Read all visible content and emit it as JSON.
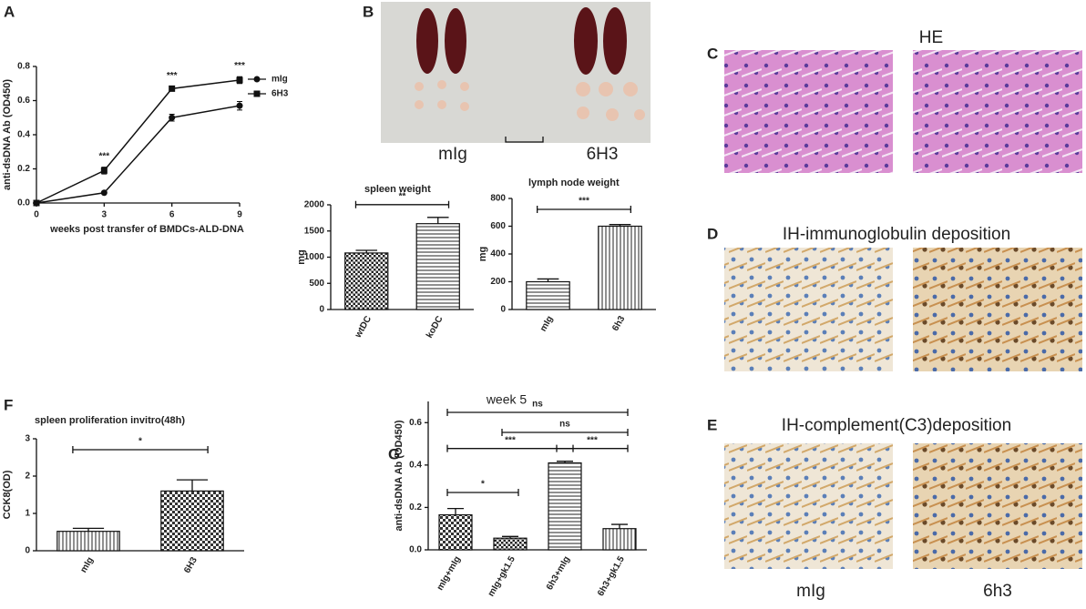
{
  "panel_labels": [
    "A",
    "B",
    "C",
    "D",
    "E",
    "F",
    "G"
  ],
  "photo_captions": {
    "b_left": "mIg",
    "b_right": "6H3",
    "c_title": "HE",
    "d_title": "IH-immunoglobulin deposition",
    "e_title": "IH-complement(C3)deposition",
    "bottom_left": "mIg",
    "bottom_right": "6h3"
  },
  "chart_data": [
    {
      "type": "line",
      "xlabel": "weeks post transfer of BMDCs-ALD-DNA",
      "ylabel": "anti-dsDNA Ab (OD450)",
      "x": [
        0,
        3,
        6,
        9
      ],
      "xlim": [
        0,
        9
      ],
      "xticks": [
        0,
        3,
        6,
        9
      ],
      "ylim": [
        0,
        0.8
      ],
      "yticks": [
        {
          "value": 0,
          "label": "0.0"
        },
        {
          "value": 0.2,
          "label": "0.2"
        },
        {
          "value": 0.4,
          "label": "0.4"
        },
        {
          "value": 0.6,
          "label": "0.6"
        },
        {
          "value": 0.8,
          "label": "0.8"
        }
      ],
      "series": [
        {
          "name": "mIg",
          "color": "#111111",
          "marker": "circle",
          "values": [
            0,
            0.06,
            0.5,
            0.57
          ],
          "errors": [
            0,
            0.005,
            0.02,
            0.025
          ]
        },
        {
          "name": "6H3",
          "color": "#111111",
          "marker": "square",
          "values": [
            0,
            0.19,
            0.67,
            0.72
          ],
          "errors": [
            0,
            0.02,
            0.01,
            0.02
          ]
        }
      ],
      "annotations": [
        {
          "x": 3,
          "label": "***"
        },
        {
          "x": 6,
          "label": "***"
        },
        {
          "x": 9,
          "label": "***"
        }
      ]
    },
    {
      "type": "bar",
      "title": "spleen weight",
      "ylabel": "mg",
      "categories": [
        "wtDC",
        "koDC"
      ],
      "values": [
        1080,
        1640
      ],
      "errors": [
        50,
        120
      ],
      "ylim": [
        0,
        2000
      ],
      "yticks": [
        0,
        500,
        1000,
        1500,
        2000
      ],
      "significance": [
        {
          "from": 0,
          "to": 1,
          "label": "**"
        }
      ]
    },
    {
      "type": "bar",
      "title": "lymph node weight",
      "ylabel": "mg",
      "categories": [
        "mIg",
        "6h3"
      ],
      "values": [
        200,
        600
      ],
      "errors": [
        20,
        12
      ],
      "ylim": [
        0,
        800
      ],
      "yticks": [
        0,
        200,
        400,
        600,
        800
      ],
      "significance": [
        {
          "from": 0,
          "to": 1,
          "label": "***"
        }
      ]
    },
    {
      "type": "bar",
      "title": "spleen proliferation invitro(48h)",
      "ylabel": "CCK8(OD)",
      "categories": [
        "mIg",
        "6H3"
      ],
      "values": [
        0.52,
        1.6
      ],
      "errors": [
        0.08,
        0.3
      ],
      "ylim": [
        0,
        3
      ],
      "yticks": [
        0,
        1,
        2,
        3
      ],
      "significance": [
        {
          "from": 0,
          "to": 1,
          "label": "*"
        }
      ]
    },
    {
      "type": "bar",
      "title": "week 5",
      "ylabel": "anti-dsDNA Ab (OD450)",
      "categories": [
        "mIg+mIg",
        "mIg+gk1.5",
        "6h3+mIg",
        "6h3+gk1.5"
      ],
      "values": [
        0.165,
        0.055,
        0.41,
        0.1
      ],
      "errors": [
        0.03,
        0.008,
        0.008,
        0.02
      ],
      "ylim": [
        0,
        0.7
      ],
      "yticks": [
        {
          "value": 0,
          "label": "0.0"
        },
        {
          "value": 0.2,
          "label": "0.2"
        },
        {
          "value": 0.4,
          "label": "0.4"
        },
        {
          "value": 0.6,
          "label": "0.6"
        }
      ],
      "significance": [
        {
          "from": 0,
          "to": 3,
          "label": "ns"
        },
        {
          "from": 1,
          "to": 3,
          "label": "ns"
        },
        {
          "from": 0,
          "to": 2,
          "label": "***"
        },
        {
          "from": 2,
          "to": 3,
          "label": "***"
        },
        {
          "from": 0,
          "to": 1,
          "label": "*"
        }
      ]
    }
  ]
}
